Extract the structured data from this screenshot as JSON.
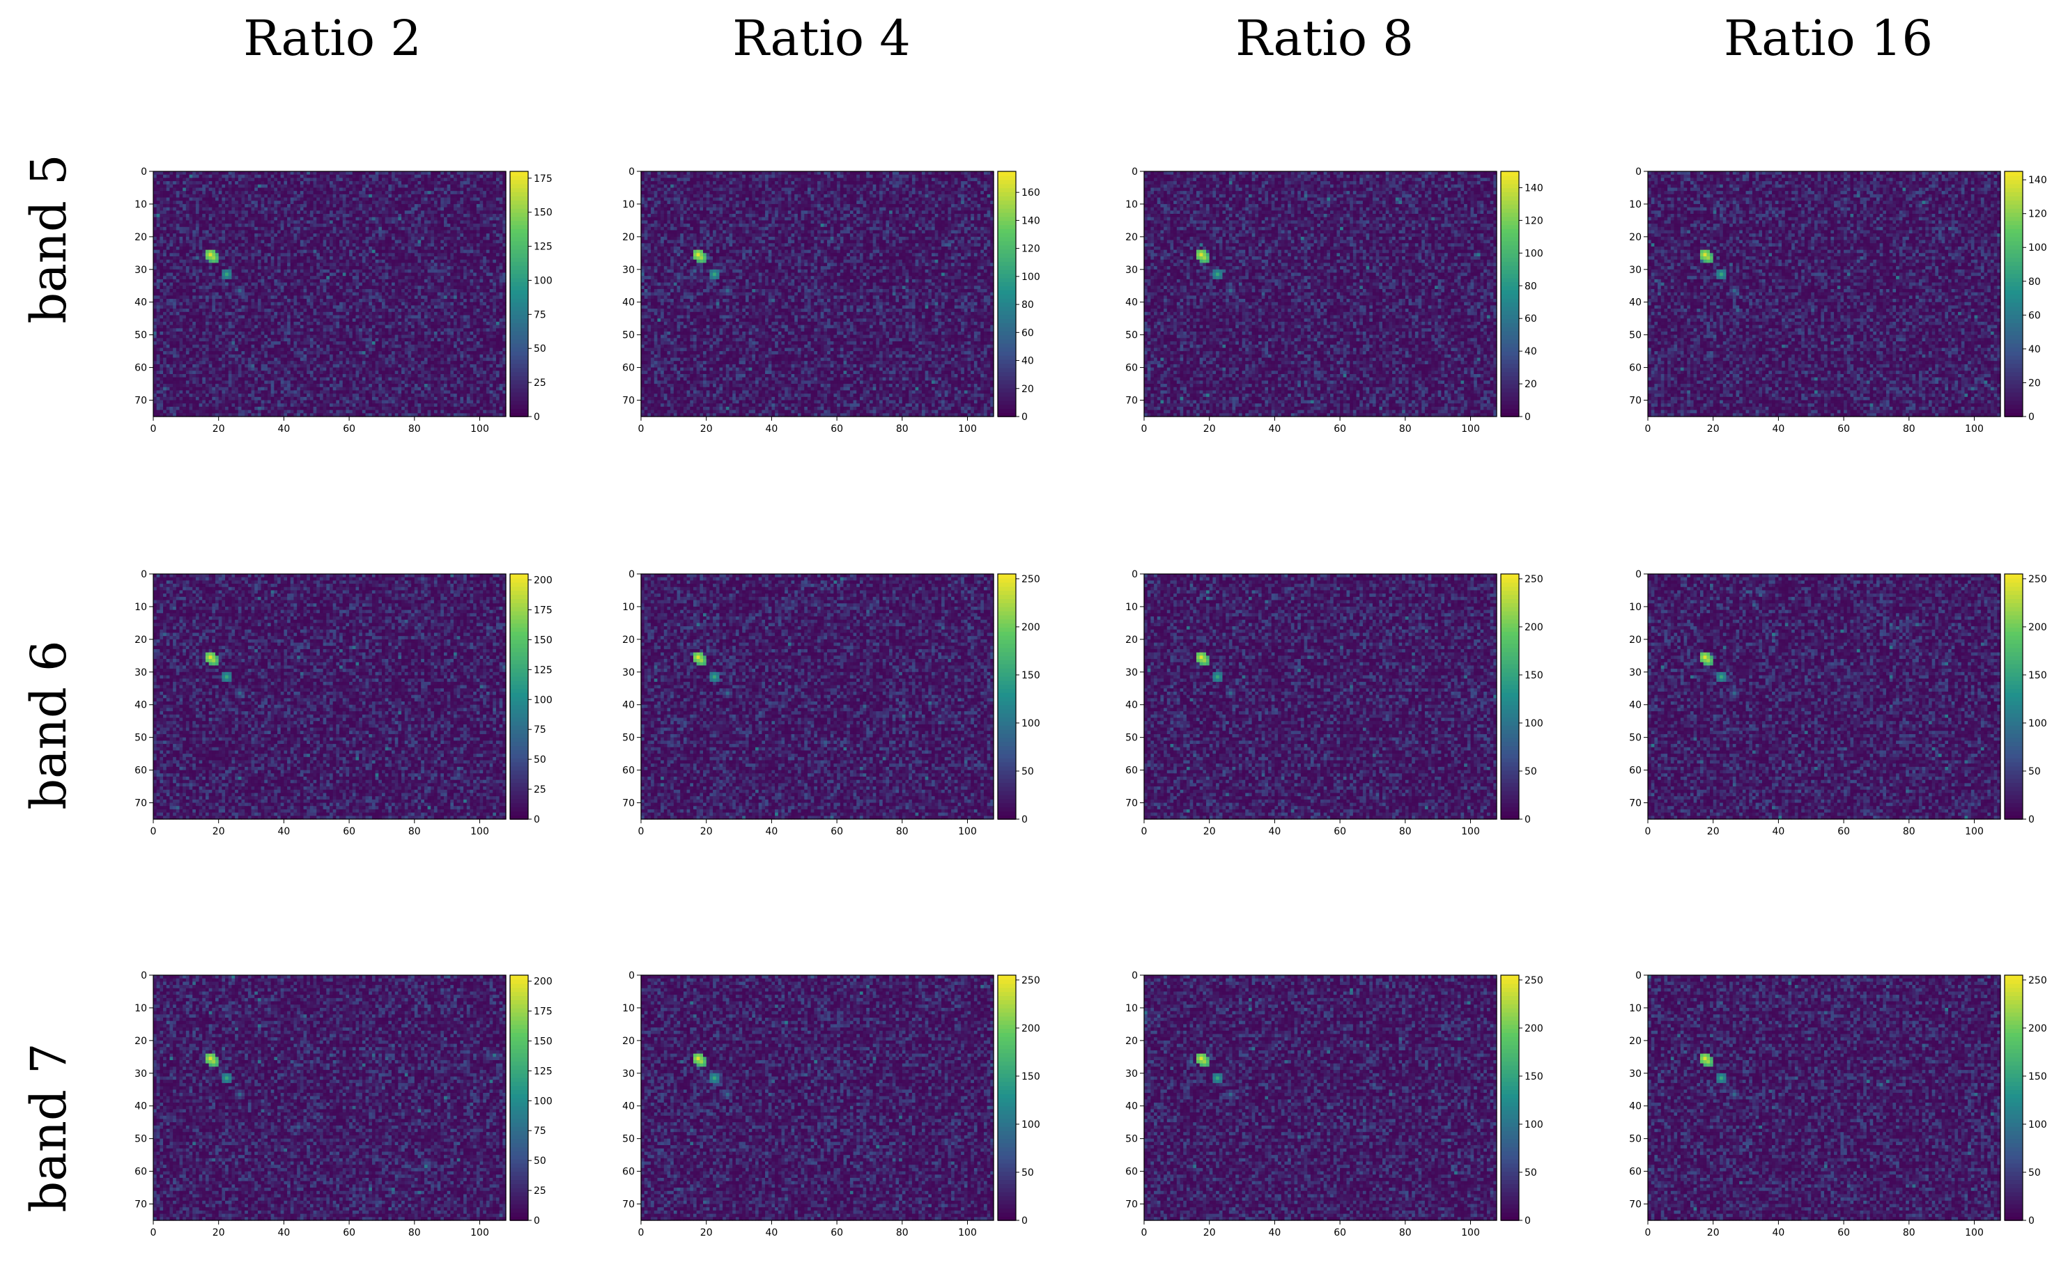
{
  "column_titles": [
    "Ratio 2",
    "Ratio 4",
    "Ratio 8",
    "Ratio 16"
  ],
  "row_titles": [
    "band 5",
    "band 6",
    "band 7"
  ],
  "colormap": [
    "#440154",
    "#3b528b",
    "#21918c",
    "#5ec962",
    "#fde725"
  ],
  "chart_data": [
    {
      "type": "heatmap",
      "row": "band 5",
      "column": "Ratio 2",
      "x_ticks": [
        0,
        20,
        40,
        60,
        80,
        100
      ],
      "y_ticks": [
        0,
        10,
        20,
        30,
        40,
        50,
        60,
        70
      ],
      "xlim": [
        0,
        108
      ],
      "ylim": [
        75,
        0
      ],
      "colorbar_ticks": [
        0,
        25,
        50,
        75,
        100,
        125,
        150,
        175
      ],
      "colorbar_range": [
        0,
        180
      ]
    },
    {
      "type": "heatmap",
      "row": "band 5",
      "column": "Ratio 4",
      "x_ticks": [
        0,
        20,
        40,
        60,
        80,
        100
      ],
      "y_ticks": [
        0,
        10,
        20,
        30,
        40,
        50,
        60,
        70
      ],
      "xlim": [
        0,
        108
      ],
      "ylim": [
        75,
        0
      ],
      "colorbar_ticks": [
        0,
        20,
        40,
        60,
        80,
        100,
        120,
        140,
        160
      ],
      "colorbar_range": [
        0,
        175
      ]
    },
    {
      "type": "heatmap",
      "row": "band 5",
      "column": "Ratio 8",
      "x_ticks": [
        0,
        20,
        40,
        60,
        80,
        100
      ],
      "y_ticks": [
        0,
        10,
        20,
        30,
        40,
        50,
        60,
        70
      ],
      "xlim": [
        0,
        108
      ],
      "ylim": [
        75,
        0
      ],
      "colorbar_ticks": [
        0,
        20,
        40,
        60,
        80,
        100,
        120,
        140
      ],
      "colorbar_range": [
        0,
        150
      ]
    },
    {
      "type": "heatmap",
      "row": "band 5",
      "column": "Ratio 16",
      "x_ticks": [
        0,
        20,
        40,
        60,
        80,
        100
      ],
      "y_ticks": [
        0,
        10,
        20,
        30,
        40,
        50,
        60,
        70
      ],
      "xlim": [
        0,
        108
      ],
      "ylim": [
        75,
        0
      ],
      "colorbar_ticks": [
        0,
        20,
        40,
        60,
        80,
        100,
        120,
        140
      ],
      "colorbar_range": [
        0,
        145
      ]
    },
    {
      "type": "heatmap",
      "row": "band 6",
      "column": "Ratio 2",
      "x_ticks": [
        0,
        20,
        40,
        60,
        80,
        100
      ],
      "y_ticks": [
        0,
        10,
        20,
        30,
        40,
        50,
        60,
        70
      ],
      "xlim": [
        0,
        108
      ],
      "ylim": [
        75,
        0
      ],
      "colorbar_ticks": [
        0,
        25,
        50,
        75,
        100,
        125,
        150,
        175,
        200
      ],
      "colorbar_range": [
        0,
        205
      ]
    },
    {
      "type": "heatmap",
      "row": "band 6",
      "column": "Ratio 4",
      "x_ticks": [
        0,
        20,
        40,
        60,
        80,
        100
      ],
      "y_ticks": [
        0,
        10,
        20,
        30,
        40,
        50,
        60,
        70
      ],
      "xlim": [
        0,
        108
      ],
      "ylim": [
        75,
        0
      ],
      "colorbar_ticks": [
        0,
        50,
        100,
        150,
        200,
        250
      ],
      "colorbar_range": [
        0,
        255
      ]
    },
    {
      "type": "heatmap",
      "row": "band 6",
      "column": "Ratio 8",
      "x_ticks": [
        0,
        20,
        40,
        60,
        80,
        100
      ],
      "y_ticks": [
        0,
        10,
        20,
        30,
        40,
        50,
        60,
        70
      ],
      "xlim": [
        0,
        108
      ],
      "ylim": [
        75,
        0
      ],
      "colorbar_ticks": [
        0,
        50,
        100,
        150,
        200,
        250
      ],
      "colorbar_range": [
        0,
        255
      ]
    },
    {
      "type": "heatmap",
      "row": "band 6",
      "column": "Ratio 16",
      "x_ticks": [
        0,
        20,
        40,
        60,
        80,
        100
      ],
      "y_ticks": [
        0,
        10,
        20,
        30,
        40,
        50,
        60,
        70
      ],
      "xlim": [
        0,
        108
      ],
      "ylim": [
        75,
        0
      ],
      "colorbar_ticks": [
        0,
        50,
        100,
        150,
        200,
        250
      ],
      "colorbar_range": [
        0,
        255
      ]
    },
    {
      "type": "heatmap",
      "row": "band 7",
      "column": "Ratio 2",
      "x_ticks": [
        0,
        20,
        40,
        60,
        80,
        100
      ],
      "y_ticks": [
        0,
        10,
        20,
        30,
        40,
        50,
        60,
        70
      ],
      "xlim": [
        0,
        108
      ],
      "ylim": [
        75,
        0
      ],
      "colorbar_ticks": [
        0,
        25,
        50,
        75,
        100,
        125,
        150,
        175,
        200
      ],
      "colorbar_range": [
        0,
        205
      ]
    },
    {
      "type": "heatmap",
      "row": "band 7",
      "column": "Ratio 4",
      "x_ticks": [
        0,
        20,
        40,
        60,
        80,
        100
      ],
      "y_ticks": [
        0,
        10,
        20,
        30,
        40,
        50,
        60,
        70
      ],
      "xlim": [
        0,
        108
      ],
      "ylim": [
        75,
        0
      ],
      "colorbar_ticks": [
        0,
        50,
        100,
        150,
        200,
        250
      ],
      "colorbar_range": [
        0,
        255
      ]
    },
    {
      "type": "heatmap",
      "row": "band 7",
      "column": "Ratio 8",
      "x_ticks": [
        0,
        20,
        40,
        60,
        80,
        100
      ],
      "y_ticks": [
        0,
        10,
        20,
        30,
        40,
        50,
        60,
        70
      ],
      "xlim": [
        0,
        108
      ],
      "ylim": [
        75,
        0
      ],
      "colorbar_ticks": [
        0,
        50,
        100,
        150,
        200,
        250
      ],
      "colorbar_range": [
        0,
        255
      ]
    },
    {
      "type": "heatmap",
      "row": "band 7",
      "column": "Ratio 16",
      "x_ticks": [
        0,
        20,
        40,
        60,
        80,
        100
      ],
      "y_ticks": [
        0,
        10,
        20,
        30,
        40,
        50,
        60,
        70
      ],
      "xlim": [
        0,
        108
      ],
      "ylim": [
        75,
        0
      ],
      "colorbar_ticks": [
        0,
        50,
        100,
        150,
        200,
        250
      ],
      "colorbar_range": [
        0,
        255
      ]
    }
  ]
}
